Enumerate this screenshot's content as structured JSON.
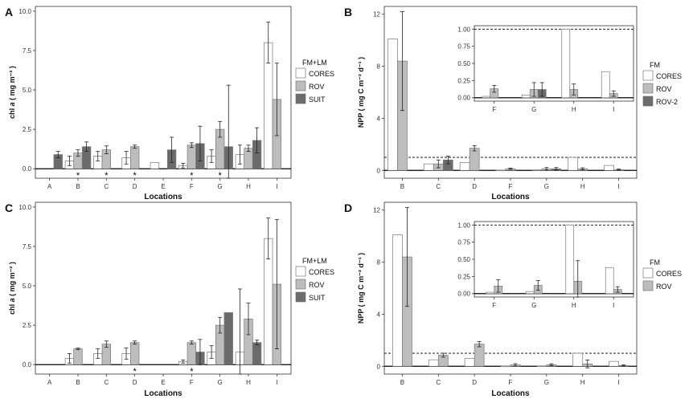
{
  "colors": {
    "CORES": "#ffffff",
    "ROV": "#bdbdbd",
    "SUIT": "#6b6b6b"
  },
  "chart_data": [
    {
      "panel": "A",
      "type": "bar",
      "ylabel_prefix": "chl",
      "ylabel_italic": "a",
      "ylabel_unit": "( mg m⁻² )",
      "ylim": [
        -0.6,
        10.3
      ],
      "yticks": [
        0.0,
        2.5,
        5.0,
        7.5,
        10.0
      ],
      "ytick_labels": [
        "0.0",
        "2.5",
        "5.0",
        "7.5",
        "10.0"
      ],
      "categories": [
        "A",
        "B",
        "C",
        "D",
        "E",
        "F",
        "G",
        "H",
        "I"
      ],
      "legend_title": "FM+LM",
      "legend": [
        "CORES",
        "ROV",
        "SUIT"
      ],
      "series": [
        {
          "name": "CORES",
          "values": [
            null,
            0.5,
            0.8,
            0.7,
            0.4,
            0.2,
            0.8,
            0.9,
            8.0
          ],
          "err": [
            null,
            0.3,
            0.3,
            0.4,
            null,
            0.15,
            0.4,
            0.6,
            1.3
          ]
        },
        {
          "name": "ROV",
          "values": [
            null,
            1.0,
            1.2,
            1.4,
            null,
            1.5,
            2.5,
            1.3,
            4.4
          ],
          "err": [
            null,
            0.2,
            0.25,
            0.1,
            null,
            0.15,
            0.5,
            0.2,
            2.3
          ]
        },
        {
          "name": "SUIT",
          "values": [
            0.9,
            1.4,
            null,
            null,
            1.2,
            1.6,
            1.4,
            1.8,
            null
          ],
          "err": [
            0.2,
            0.3,
            null,
            null,
            0.8,
            1.1,
            3.9,
            0.8,
            null
          ]
        }
      ],
      "stars": [
        "B",
        "C",
        "D",
        "F",
        "G"
      ],
      "hline": null,
      "inset": null
    },
    {
      "panel": "B",
      "type": "bar",
      "ylabel_prefix": "NPP",
      "ylabel_italic": "",
      "ylabel_unit": "( mg C m⁻² d⁻¹ )",
      "ylim": [
        -0.6,
        12.6
      ],
      "yticks": [
        0,
        4,
        8,
        12
      ],
      "ytick_labels": [
        "0",
        "4",
        "8",
        "12"
      ],
      "categories": [
        "B",
        "C",
        "D",
        "F",
        "G",
        "H",
        "I"
      ],
      "legend_title": "FM",
      "legend": [
        "CORES",
        "ROV",
        "ROV-2"
      ],
      "series": [
        {
          "name": "CORES",
          "values": [
            10.1,
            0.5,
            0.6,
            0.02,
            0.04,
            1.0,
            0.38
          ],
          "err": [
            null,
            null,
            null,
            null,
            null,
            null,
            null
          ]
        },
        {
          "name": "ROV",
          "values": [
            8.4,
            0.5,
            1.7,
            0.13,
            0.12,
            0.12,
            0.06
          ],
          "err": [
            3.8,
            0.3,
            0.2,
            0.05,
            0.1,
            0.08,
            0.04
          ]
        },
        {
          "name": "ROV-2",
          "values": [
            null,
            0.8,
            null,
            null,
            0.12,
            null,
            null
          ],
          "err": [
            null,
            0.3,
            null,
            null,
            0.1,
            null,
            null
          ]
        }
      ],
      "stars": [],
      "hline": 1.0,
      "inset": {
        "categories": [
          "F",
          "G",
          "H",
          "I"
        ],
        "ylim": [
          -0.05,
          1.05
        ],
        "yticks": [
          0.0,
          0.25,
          0.5,
          0.75,
          1.0
        ],
        "ytick_labels": [
          "0.00",
          "0.25",
          "0.50",
          "0.75",
          "1.00"
        ],
        "hline": 1.0,
        "series": [
          {
            "name": "CORES",
            "values": [
              0.02,
              0.04,
              1.0,
              0.38
            ],
            "err": [
              null,
              null,
              null,
              null
            ]
          },
          {
            "name": "ROV",
            "values": [
              0.13,
              0.12,
              0.12,
              0.06
            ],
            "err": [
              0.05,
              0.1,
              0.08,
              0.04
            ]
          },
          {
            "name": "ROV-2",
            "values": [
              null,
              0.12,
              null,
              null
            ],
            "err": [
              null,
              0.1,
              null,
              null
            ]
          }
        ]
      }
    },
    {
      "panel": "C",
      "type": "bar",
      "ylabel_prefix": "chl",
      "ylabel_italic": "a",
      "ylabel_unit": "( mg m⁻² )",
      "ylim": [
        -0.6,
        10.3
      ],
      "yticks": [
        0.0,
        2.5,
        5.0,
        7.5,
        10.0
      ],
      "ytick_labels": [
        "0.0",
        "2.5",
        "5.0",
        "7.5",
        "10.0"
      ],
      "categories": [
        "A",
        "B",
        "C",
        "D",
        "E",
        "F",
        "G",
        "H",
        "I"
      ],
      "legend_title": "FM+LM",
      "legend": [
        "CORES",
        "ROV",
        "SUIT"
      ],
      "series": [
        {
          "name": "CORES",
          "values": [
            null,
            0.4,
            0.7,
            0.7,
            null,
            0.2,
            0.8,
            0.8,
            8.0
          ],
          "err": [
            null,
            0.3,
            0.3,
            0.35,
            null,
            0.1,
            0.4,
            4.0,
            1.3
          ]
        },
        {
          "name": "ROV",
          "values": [
            null,
            1.0,
            1.3,
            1.4,
            null,
            1.4,
            2.5,
            2.9,
            5.1
          ],
          "err": [
            null,
            0.05,
            0.2,
            0.1,
            null,
            0.1,
            0.5,
            1.0,
            4.1
          ]
        },
        {
          "name": "SUIT",
          "values": [
            null,
            null,
            null,
            null,
            null,
            0.8,
            3.3,
            1.4,
            null
          ],
          "err": [
            null,
            null,
            null,
            null,
            null,
            0.8,
            null,
            0.15,
            null
          ]
        }
      ],
      "stars": [
        "D",
        "F"
      ],
      "hline": null,
      "inset": null
    },
    {
      "panel": "D",
      "type": "bar",
      "ylabel_prefix": "NPP",
      "ylabel_italic": "",
      "ylabel_unit": "( mg C m⁻² d⁻¹ )",
      "ylim": [
        -0.6,
        12.6
      ],
      "yticks": [
        0,
        4,
        8,
        12
      ],
      "ytick_labels": [
        "0",
        "4",
        "8",
        "12"
      ],
      "categories": [
        "B",
        "C",
        "D",
        "F",
        "G",
        "H",
        "I"
      ],
      "legend_title": "FM",
      "legend": [
        "CORES",
        "ROV"
      ],
      "series": [
        {
          "name": "CORES",
          "values": [
            10.1,
            0.5,
            0.6,
            0.02,
            0.03,
            1.0,
            0.38
          ],
          "err": [
            null,
            null,
            null,
            null,
            null,
            null,
            null
          ]
        },
        {
          "name": "ROV",
          "values": [
            8.4,
            0.85,
            1.7,
            0.11,
            0.12,
            0.18,
            0.06
          ],
          "err": [
            3.8,
            0.15,
            0.2,
            0.09,
            0.07,
            0.3,
            0.04
          ]
        }
      ],
      "stars": [],
      "hline": 1.0,
      "inset": {
        "categories": [
          "F",
          "G",
          "H",
          "I"
        ],
        "ylim": [
          -0.05,
          1.05
        ],
        "yticks": [
          0.0,
          0.25,
          0.5,
          0.75,
          1.0
        ],
        "ytick_labels": [
          "0.00",
          "0.25",
          "0.50",
          "0.75",
          "1.00"
        ],
        "hline": 1.0,
        "series": [
          {
            "name": "CORES",
            "values": [
              0.02,
              0.03,
              1.0,
              0.38
            ],
            "err": [
              null,
              null,
              null,
              null
            ]
          },
          {
            "name": "ROV",
            "values": [
              0.11,
              0.12,
              0.18,
              0.06
            ],
            "err": [
              0.09,
              0.07,
              0.3,
              0.04
            ]
          }
        ]
      }
    }
  ],
  "xlabel": "Locations"
}
